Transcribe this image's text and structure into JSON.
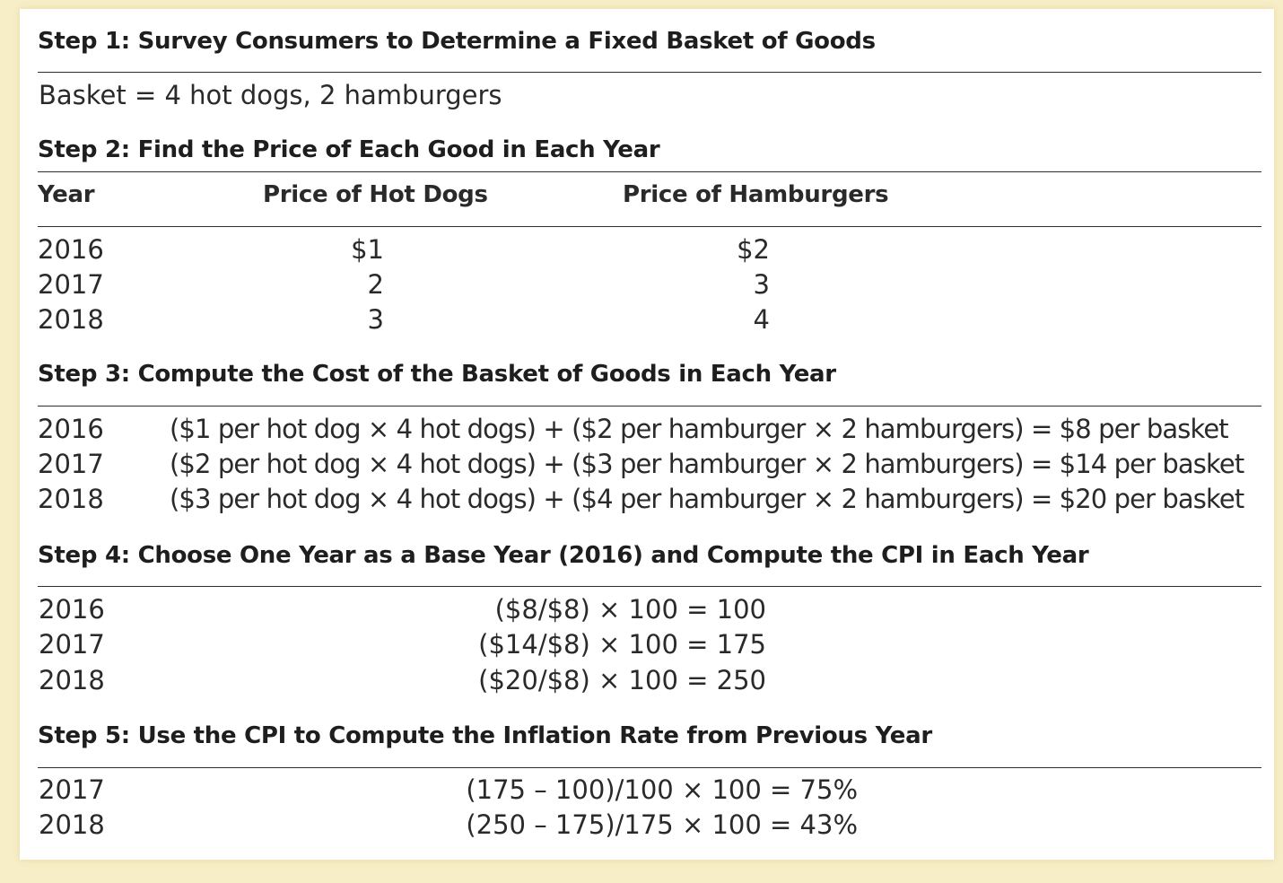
{
  "step1": {
    "heading": "Step 1: Survey Consumers to Determine a Fixed Basket of Goods",
    "basket": "Basket = 4 hot dogs, 2 hamburgers"
  },
  "step2": {
    "heading": "Step 2: Find the Price of Each Good in Each Year",
    "columns": [
      "Year",
      "Price of Hot Dogs",
      "Price of Hamburgers"
    ],
    "rows": [
      {
        "year": "2016",
        "hot_dogs": "$1",
        "hamburgers": "$2"
      },
      {
        "year": "2017",
        "hot_dogs": "2",
        "hamburgers": "3"
      },
      {
        "year": "2018",
        "hot_dogs": "3",
        "hamburgers": "4"
      }
    ]
  },
  "step3": {
    "heading": "Step 3: Compute the Cost of the Basket of Goods in Each Year",
    "rows": [
      {
        "year": "2016",
        "formula": "($1 per hot dog × 4 hot dogs) + ($2 per hamburger × 2 hamburgers) = $8 per basket"
      },
      {
        "year": "2017",
        "formula": "($2 per hot dog × 4 hot dogs) + ($3 per hamburger × 2 hamburgers) = $14 per basket"
      },
      {
        "year": "2018",
        "formula": "($3 per hot dog × 4 hot dogs) + ($4 per hamburger × 2 hamburgers) = $20 per basket"
      }
    ]
  },
  "step4": {
    "heading": "Step 4: Choose One Year as a Base Year (2016) and Compute the CPI in Each Year",
    "rows": [
      {
        "year": "2016",
        "formula": "($8/$8) × 100 = 100"
      },
      {
        "year": "2017",
        "formula": "($14/$8) × 100 = 175"
      },
      {
        "year": "2018",
        "formula": "($20/$8) × 100 = 250"
      }
    ]
  },
  "step5": {
    "heading": "Step 5: Use the CPI to Compute the Inflation Rate from Previous Year",
    "rows": [
      {
        "year": "2017",
        "formula": "(175 – 100)/100 × 100 = 75%"
      },
      {
        "year": "2018",
        "formula": "(250 – 175)/175 × 100 = 43%"
      }
    ]
  }
}
